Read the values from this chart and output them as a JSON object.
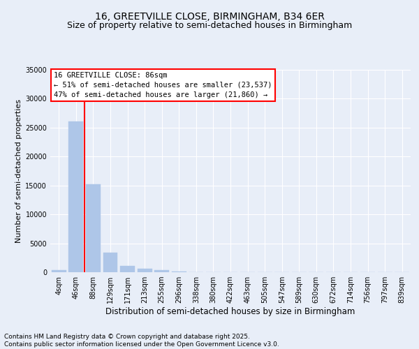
{
  "title": "16, GREETVILLE CLOSE, BIRMINGHAM, B34 6ER",
  "subtitle": "Size of property relative to semi-detached houses in Birmingham",
  "xlabel": "Distribution of semi-detached houses by size in Birmingham",
  "ylabel": "Number of semi-detached properties",
  "footnote1": "Contains HM Land Registry data © Crown copyright and database right 2025.",
  "footnote2": "Contains public sector information licensed under the Open Government Licence v3.0.",
  "categories": [
    "4sqm",
    "46sqm",
    "88sqm",
    "129sqm",
    "171sqm",
    "213sqm",
    "255sqm",
    "296sqm",
    "338sqm",
    "380sqm",
    "422sqm",
    "463sqm",
    "505sqm",
    "547sqm",
    "589sqm",
    "630sqm",
    "672sqm",
    "714sqm",
    "756sqm",
    "797sqm",
    "839sqm"
  ],
  "values": [
    400,
    26100,
    15200,
    3400,
    1100,
    550,
    400,
    150,
    0,
    0,
    0,
    0,
    0,
    0,
    0,
    0,
    0,
    0,
    0,
    0,
    0
  ],
  "bar_color": "#aec6e8",
  "bar_edgecolor": "#aec6e8",
  "vline_color": "red",
  "vline_position": 1.5,
  "annotation_text_line1": "16 GREETVILLE CLOSE: 86sqm",
  "annotation_text_line2": "← 51% of semi-detached houses are smaller (23,537)",
  "annotation_text_line3": "47% of semi-detached houses are larger (21,860) →",
  "annotation_box_edgecolor": "red",
  "annotation_box_facecolor": "white",
  "background_color": "#e8eef8",
  "ylim": [
    0,
    35000
  ],
  "yticks": [
    0,
    5000,
    10000,
    15000,
    20000,
    25000,
    30000,
    35000
  ],
  "grid_color": "#ffffff",
  "title_fontsize": 10,
  "subtitle_fontsize": 9,
  "annotation_fontsize": 7.5,
  "ylabel_fontsize": 8,
  "xlabel_fontsize": 8.5,
  "tick_fontsize": 7,
  "footnote_fontsize": 6.5
}
